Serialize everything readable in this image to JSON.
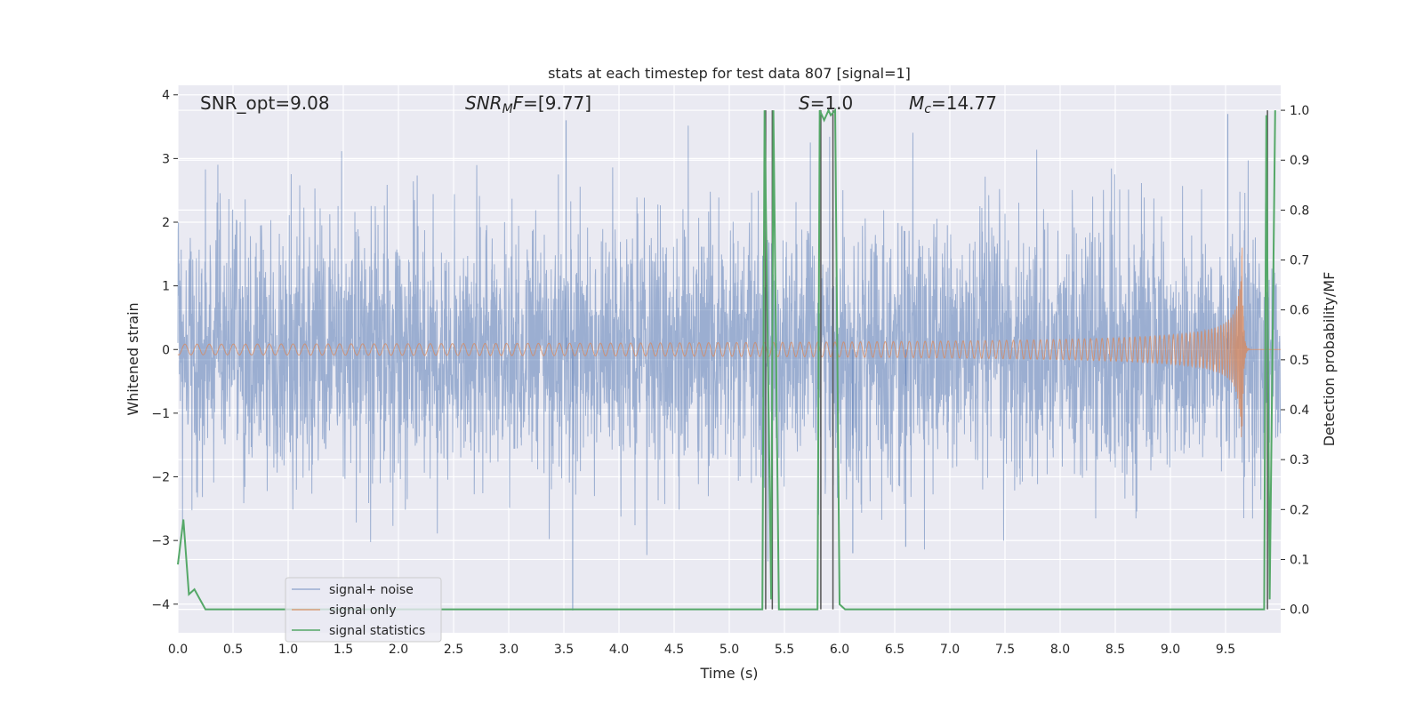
{
  "chart_data": {
    "type": "line",
    "title": "stats at each timestep for test data 807 [signal=1]",
    "xlabel": "Time (s)",
    "ylabel_left": "Whitened strain",
    "ylabel_right": "Detection probability/MF",
    "xlim": [
      0.0,
      10.0
    ],
    "ylim_left": [
      -4.45,
      4.15
    ],
    "ylim_right": [
      -0.047,
      1.05
    ],
    "x_ticks": [
      "0.0",
      "0.5",
      "1.0",
      "1.5",
      "2.0",
      "2.5",
      "3.0",
      "3.5",
      "4.0",
      "4.5",
      "5.0",
      "5.5",
      "6.0",
      "6.5",
      "7.0",
      "7.5",
      "8.0",
      "8.5",
      "9.0",
      "9.5"
    ],
    "y_left_ticks": [
      "4",
      "3",
      "2",
      "1",
      "0",
      "−1",
      "−2",
      "−3",
      "−4"
    ],
    "y_left_values": [
      4,
      3,
      2,
      1,
      0,
      -1,
      -2,
      -3,
      -4
    ],
    "y_right_ticks": [
      "1.0",
      "0.9",
      "0.8",
      "0.7",
      "0.6",
      "0.5",
      "0.4",
      "0.3",
      "0.2",
      "0.1",
      "0.0"
    ],
    "y_right_values": [
      1.0,
      0.9,
      0.8,
      0.7,
      0.6,
      0.5,
      0.4,
      0.3,
      0.2,
      0.1,
      0.0
    ],
    "grid": true,
    "legend_position": "lower-left",
    "legend": [
      "signal+ noise",
      "signal only",
      "signal statistics"
    ],
    "annotations": {
      "snr_opt": "SNR_opt=9.08",
      "snr_mf_sym": "SNR",
      "snr_mf_sub": "M",
      "snr_mf_sym2": "F",
      "snr_mf_val": "=[9.77]",
      "s_sym": "S",
      "s_val": "=1.0",
      "mc_sym": "M",
      "mc_sub": "c",
      "mc_val": "=14.77"
    },
    "series": [
      {
        "name": "signal+ noise",
        "axis": "left",
        "color": "#4c72b0",
        "kind": "noise",
        "x_range": [
          0.0,
          10.0
        ],
        "sigma": 1.0,
        "notable_peaks": [
          {
            "x": 3.52,
            "y": 3.6
          },
          {
            "x": 3.58,
            "y": -4.1
          },
          {
            "x": 6.12,
            "y": -3.2
          },
          {
            "x": 6.6,
            "y": -3.1
          },
          {
            "x": 9.52,
            "y": 3.7
          }
        ]
      },
      {
        "name": "signal only",
        "axis": "left",
        "color": "#dd8452",
        "kind": "chirp",
        "merger_time": 9.65,
        "peak_amplitude": 1.6,
        "ringdown_end": 9.72
      },
      {
        "name": "signal statistics",
        "axis": "right",
        "color": "#55a868",
        "x": [
          0.0,
          0.05,
          0.1,
          0.15,
          0.2,
          0.25,
          0.3,
          5.3,
          5.32,
          5.38,
          5.4,
          5.45,
          5.5,
          5.8,
          5.82,
          5.86,
          5.9,
          5.92,
          5.96,
          6.0,
          6.05,
          9.85,
          9.87,
          9.9,
          9.95
        ],
        "y": [
          0.09,
          0.18,
          0.03,
          0.04,
          0.02,
          0.0,
          0.0,
          0.0,
          1.0,
          0.02,
          1.0,
          0.0,
          0.0,
          0.0,
          1.0,
          0.98,
          1.0,
          0.99,
          1.0,
          0.01,
          0.0,
          0.0,
          0.99,
          0.02,
          1.0
        ]
      }
    ],
    "vertical_lines": {
      "color": "#555555",
      "lines": [
        {
          "x": 5.33,
          "ymin": 0.0,
          "ymax": 1.0
        },
        {
          "x": 5.39,
          "ymin": 0.0,
          "ymax": 1.0
        },
        {
          "x": 5.83,
          "ymin": 0.0,
          "ymax": 1.0
        },
        {
          "x": 5.94,
          "ymin": 0.0,
          "ymax": 1.0
        },
        {
          "x": 9.88,
          "ymin": 0.0,
          "ymax": 1.0
        }
      ]
    }
  }
}
